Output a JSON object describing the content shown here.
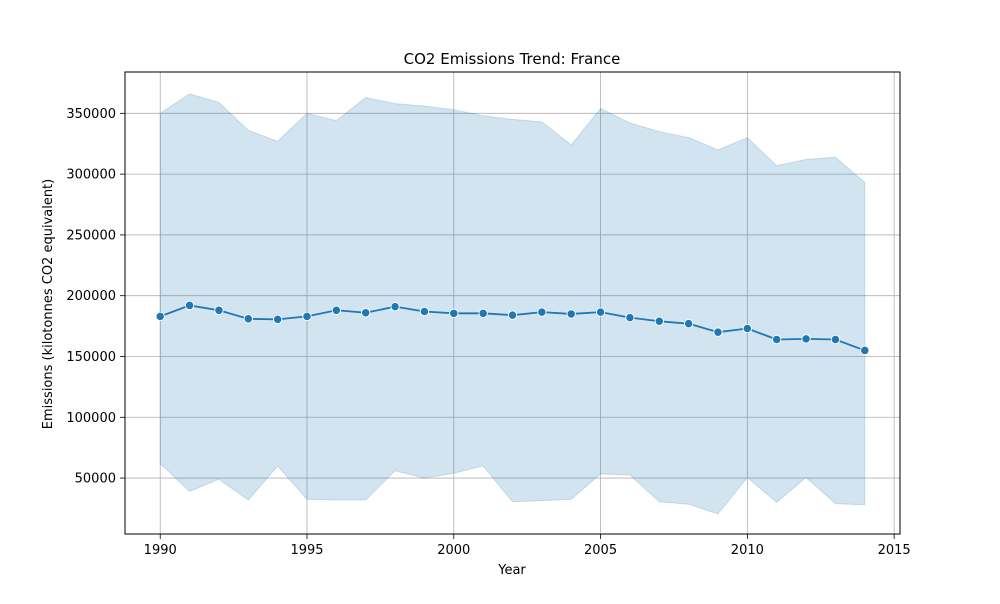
{
  "chart_data": {
    "type": "line",
    "title": "CO2 Emissions Trend: France",
    "xlabel": "Year",
    "ylabel": "Emissions (kilotonnes CO2 equivalent)",
    "xlim": [
      1988.8,
      2015.2
    ],
    "ylim": [
      4000,
      384000
    ],
    "x_ticks": [
      1990,
      1995,
      2000,
      2005,
      2010,
      2015
    ],
    "y_ticks": [
      50000,
      100000,
      150000,
      200000,
      250000,
      300000,
      350000
    ],
    "grid": true,
    "legend": "none",
    "line_color": "#1f77b4",
    "band_color": "#1f77b4",
    "series": [
      {
        "x": [
          1990,
          1991,
          1992,
          1993,
          1994,
          1995,
          1996,
          1997,
          1998,
          1999,
          2000,
          2001,
          2002,
          2003,
          2004,
          2005,
          2006,
          2007,
          2008,
          2009,
          2010,
          2011,
          2012,
          2013,
          2014
        ],
        "values": [
          183000,
          192000,
          188000,
          181000,
          180500,
          183000,
          188000,
          186000,
          191000,
          187000,
          185500,
          185500,
          184000,
          186500,
          185000,
          186500,
          182000,
          179000,
          177000,
          170000,
          173000,
          164000,
          164500,
          164000,
          155000
        ],
        "band_upper": [
          350000,
          366000,
          359000,
          336000,
          327000,
          350000,
          344000,
          363000,
          358000,
          356000,
          353000,
          348000,
          345000,
          343000,
          324000,
          354000,
          342000,
          335000,
          330000,
          320000,
          330000,
          307000,
          312000,
          314000,
          293000
        ],
        "band_lower": [
          62000,
          39000,
          49000,
          32000,
          60000,
          32500,
          32000,
          32000,
          56000,
          50000,
          54000,
          60000,
          30500,
          31500,
          32500,
          53500,
          52500,
          30500,
          28500,
          20500,
          50500,
          30000,
          50500,
          29000,
          28000
        ]
      }
    ]
  }
}
